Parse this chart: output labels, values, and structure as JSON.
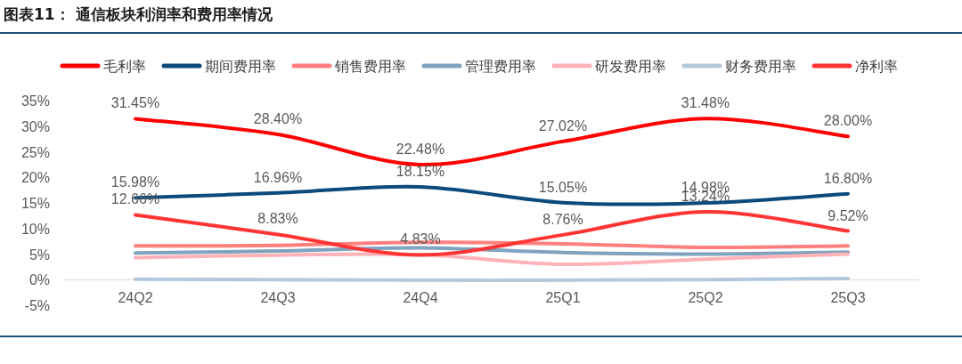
{
  "chart_data": {
    "type": "line",
    "title": "图表11： 通信板块利润率和费用率情况",
    "categories": [
      "24Q2",
      "24Q3",
      "24Q4",
      "25Q1",
      "25Q2",
      "25Q3"
    ],
    "series": [
      {
        "name": "毛利率",
        "color": "#ff0000",
        "values": [
          31.45,
          28.4,
          22.48,
          27.02,
          31.48,
          28.0
        ],
        "value_labels": [
          "31.45%",
          "28.40%",
          "22.48%",
          "27.02%",
          "31.48%",
          "28.00%"
        ]
      },
      {
        "name": "期间费用率",
        "color": "#0b4a7c",
        "values": [
          15.98,
          16.96,
          18.15,
          15.05,
          14.98,
          16.8
        ],
        "value_labels": [
          "15.98%",
          "16.96%",
          "18.15%",
          "15.05%",
          "14.98%",
          "16.80%"
        ]
      },
      {
        "name": "销售费用率",
        "color": "#ff7f7f",
        "values": [
          6.6,
          6.7,
          7.3,
          7.0,
          6.3,
          6.6
        ]
      },
      {
        "name": "管理费用率",
        "color": "#7fa2bf",
        "values": [
          5.2,
          5.6,
          6.2,
          5.3,
          5.0,
          5.4
        ]
      },
      {
        "name": "研发费用率",
        "color": "#ffb2b7",
        "values": [
          4.3,
          4.8,
          4.9,
          3.0,
          4.0,
          5.0
        ]
      },
      {
        "name": "财务费用率",
        "color": "#b3c8da",
        "values": [
          0.1,
          0.0,
          -0.1,
          -0.1,
          0.0,
          0.2
        ]
      },
      {
        "name": "净利率",
        "color": "#ff3434",
        "values": [
          12.66,
          8.83,
          4.83,
          8.76,
          13.24,
          9.52
        ],
        "value_labels": [
          "12.66%",
          "8.83%",
          "4.83%",
          "8.76%",
          "13.24%",
          "9.52%"
        ]
      }
    ],
    "ylim": [
      -5,
      35
    ],
    "yticks": [
      {
        "value": -5,
        "label": "-5%"
      },
      {
        "value": 0,
        "label": "0%"
      },
      {
        "value": 5,
        "label": "5%"
      },
      {
        "value": 10,
        "label": "10%"
      },
      {
        "value": 15,
        "label": "15%"
      },
      {
        "value": 20,
        "label": "20%"
      },
      {
        "value": 25,
        "label": "25%"
      },
      {
        "value": 30,
        "label": "30%"
      },
      {
        "value": 35,
        "label": "35%"
      }
    ],
    "legend": "top",
    "marker": "none",
    "line_style": "solid",
    "grid": false
  }
}
